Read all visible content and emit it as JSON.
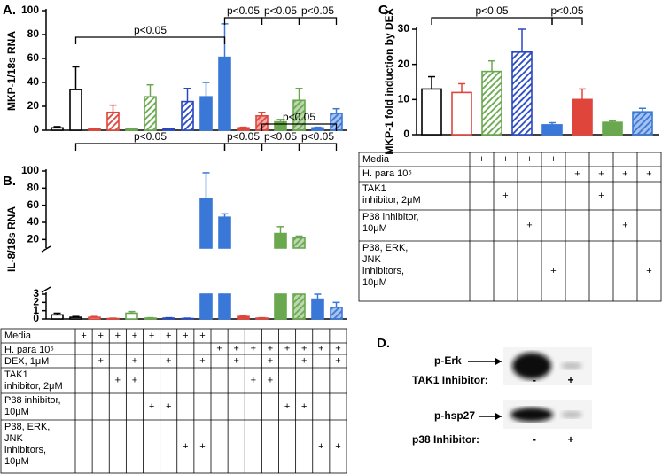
{
  "chart_data": [
    {
      "type": "bar",
      "panel_label": "A.",
      "ylabel": "MKP-1/18s RNA",
      "values": [
        2,
        34,
        1,
        15,
        1,
        28,
        1,
        24,
        28,
        61,
        2,
        12,
        7,
        25,
        2,
        14
      ],
      "errors": [
        1,
        19,
        0.5,
        6,
        0.5,
        10,
        0.5,
        11,
        12,
        28,
        0.5,
        3,
        2,
        10,
        0.5,
        4
      ],
      "colors": [
        "#000000",
        "#000000",
        "#e0453c",
        "#e0453c",
        "#6aa84f",
        "#6aa84f",
        "#2848c0",
        "#2848c0",
        "#3a78d8",
        "#3a78d8",
        "#e0453c",
        "#e0453c",
        "#6aa84f",
        "#6aa84f",
        "#3a78d8",
        "#3a78d8"
      ],
      "ylim": [
        0,
        100
      ],
      "yticks": [
        0,
        20,
        40,
        60,
        80,
        100
      ],
      "annotations": [
        "p<0.05",
        "p<0.05",
        "p<0.05",
        "p<0.05"
      ]
    },
    {
      "type": "broken_bar",
      "panel_label": "B.",
      "ylabel": "IL-8/18s RNA",
      "values": [
        0.5,
        0.2,
        0.2,
        0.05,
        0.7,
        0.1,
        0.1,
        0.05,
        68,
        46,
        0.3,
        0.1,
        27,
        22,
        2.4,
        1.4
      ],
      "errors": [
        0.2,
        0.1,
        0.1,
        0.05,
        0.2,
        0.05,
        0.05,
        0.05,
        30,
        4,
        0.1,
        0.05,
        8,
        2,
        0.6,
        0.6
      ],
      "colors": [
        "#000000",
        "#000000",
        "#e0453c",
        "#e0453c",
        "#6aa84f",
        "#6aa84f",
        "#2848c0",
        "#2848c0",
        "#3a78d8",
        "#3a78d8",
        "#e0453c",
        "#e0453c",
        "#6aa84f",
        "#6aa84f",
        "#3a78d8",
        "#3a78d8"
      ],
      "ylim": [
        10,
        100
      ],
      "yticks": [
        20,
        40,
        60,
        80,
        100
      ],
      "ylim_lower": [
        0,
        3
      ],
      "yticks_lower": [
        0,
        1,
        2,
        3
      ],
      "annotations": [
        "p<0.05",
        "p<0.05",
        "p<0.05",
        "p<0.05",
        "p<0.05"
      ]
    },
    {
      "type": "bar",
      "panel_label": "C.",
      "ylabel": "MKP-1 fold induction by DEX",
      "values": [
        13,
        12,
        18,
        23.5,
        2.8,
        10,
        3.5,
        6.5
      ],
      "errors": [
        3.5,
        2.5,
        3,
        6.5,
        0.6,
        3,
        0.4,
        1
      ],
      "colors": [
        "#000000",
        "#e0453c",
        "#6aa84f",
        "#2848c0",
        "#3a78d8",
        "#e0453c",
        "#6aa84f",
        "#3a78d8"
      ],
      "ylim": [
        0,
        30
      ],
      "yticks": [
        0,
        10,
        20,
        30
      ],
      "annotations": [
        "p<0.05",
        "p<0.05"
      ]
    }
  ],
  "tables": [
    {
      "rows": [
        {
          "label": [
            "Media"
          ],
          "cells": [
            "+",
            "+",
            "+",
            "+",
            "+",
            "+",
            "+",
            "+",
            null,
            null,
            null,
            null,
            null,
            null,
            null,
            null
          ]
        },
        {
          "label": [
            "H. para 10⁶"
          ],
          "cells": [
            null,
            null,
            null,
            null,
            null,
            null,
            null,
            null,
            "+",
            "+",
            "+",
            "+",
            "+",
            "+",
            "+",
            "+"
          ]
        },
        {
          "label": [
            "DEX, 1μM"
          ],
          "cells": [
            null,
            "+",
            null,
            "+",
            null,
            "+",
            null,
            "+",
            null,
            "+",
            null,
            "+",
            null,
            "+",
            null,
            "+"
          ]
        },
        {
          "label": [
            "TAK1",
            "inhibitor, 2μM"
          ],
          "cells": [
            null,
            null,
            "+",
            "+",
            null,
            null,
            null,
            null,
            null,
            null,
            "+",
            "+",
            null,
            null,
            null,
            null
          ]
        },
        {
          "label": [
            "P38 inhibitor,",
            "10μM"
          ],
          "cells": [
            null,
            null,
            null,
            null,
            "+",
            "+",
            null,
            null,
            null,
            null,
            null,
            null,
            "+",
            "+",
            null,
            null
          ]
        },
        {
          "label": [
            "P38, ERK,",
            "JNK",
            "inhibitors,",
            "10μM"
          ],
          "cells": [
            null,
            null,
            null,
            null,
            null,
            null,
            "+",
            "+",
            null,
            null,
            null,
            null,
            null,
            null,
            "+",
            "+"
          ]
        }
      ]
    },
    {
      "rows": [
        {
          "label": [
            "Media"
          ],
          "cells": [
            "+",
            "+",
            "+",
            "+",
            null,
            null,
            null,
            null
          ]
        },
        {
          "label": [
            "H. para 10⁶"
          ],
          "cells": [
            null,
            null,
            null,
            null,
            "+",
            "+",
            "+",
            "+"
          ]
        },
        {
          "label": [
            "TAK1",
            "inhibitor, 2μM"
          ],
          "cells": [
            null,
            "+",
            null,
            null,
            null,
            "+",
            null,
            null
          ]
        },
        {
          "label": [
            "P38 inhibitor,",
            "10μM"
          ],
          "cells": [
            null,
            null,
            "+",
            null,
            null,
            null,
            "+",
            null
          ]
        },
        {
          "label": [
            "P38, ERK,",
            "JNK",
            "inhibitors,",
            "10μM"
          ],
          "cells": [
            null,
            null,
            null,
            "+",
            null,
            null,
            null,
            "+"
          ]
        }
      ]
    }
  ],
  "blot": {
    "panel_label": "D.",
    "rows": [
      {
        "label": "p-Erk",
        "treatment": "TAK1 Inhibitor:",
        "minus": "-",
        "plus": "+"
      },
      {
        "label": "p-hsp27",
        "treatment": "p38 Inhibitor:",
        "minus": "-",
        "plus": "+"
      }
    ]
  }
}
